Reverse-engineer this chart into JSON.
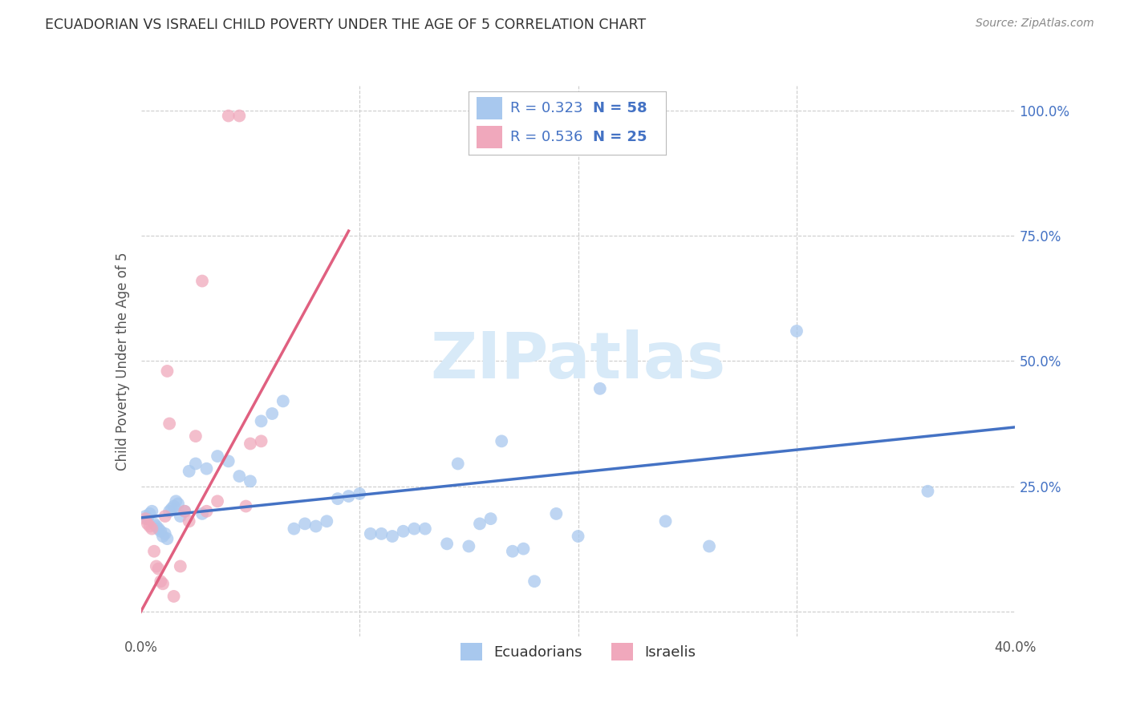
{
  "title": "ECUADORIAN VS ISRAELI CHILD POVERTY UNDER THE AGE OF 5 CORRELATION CHART",
  "source": "Source: ZipAtlas.com",
  "ylabel": "Child Poverty Under the Age of 5",
  "xlim": [
    0.0,
    0.4
  ],
  "ylim": [
    -0.05,
    1.05
  ],
  "legend_r_blue": "R = 0.323",
  "legend_n_blue": "N = 58",
  "legend_r_pink": "R = 0.536",
  "legend_n_pink": "N = 25",
  "color_blue": "#A8C8EE",
  "color_pink": "#F0A8BC",
  "color_blue_line": "#4472C4",
  "color_pink_line": "#E06080",
  "watermark_color": "#D8EAF8",
  "background_color": "#FFFFFF",
  "grid_color": "#CCCCCC",
  "ecu_x": [
    0.002,
    0.003,
    0.004,
    0.005,
    0.006,
    0.007,
    0.008,
    0.009,
    0.01,
    0.011,
    0.012,
    0.013,
    0.014,
    0.015,
    0.016,
    0.017,
    0.018,
    0.02,
    0.022,
    0.025,
    0.028,
    0.03,
    0.035,
    0.04,
    0.045,
    0.05,
    0.055,
    0.06,
    0.065,
    0.07,
    0.075,
    0.08,
    0.085,
    0.09,
    0.095,
    0.1,
    0.105,
    0.11,
    0.115,
    0.12,
    0.125,
    0.13,
    0.14,
    0.145,
    0.15,
    0.155,
    0.16,
    0.165,
    0.17,
    0.175,
    0.18,
    0.19,
    0.2,
    0.21,
    0.24,
    0.26,
    0.3,
    0.36
  ],
  "ecu_y": [
    0.19,
    0.185,
    0.195,
    0.2,
    0.175,
    0.17,
    0.165,
    0.16,
    0.15,
    0.155,
    0.145,
    0.2,
    0.205,
    0.21,
    0.22,
    0.215,
    0.19,
    0.2,
    0.28,
    0.295,
    0.195,
    0.285,
    0.31,
    0.3,
    0.27,
    0.26,
    0.38,
    0.395,
    0.42,
    0.165,
    0.175,
    0.17,
    0.18,
    0.225,
    0.23,
    0.235,
    0.155,
    0.155,
    0.15,
    0.16,
    0.165,
    0.165,
    0.135,
    0.295,
    0.13,
    0.175,
    0.185,
    0.34,
    0.12,
    0.125,
    0.06,
    0.195,
    0.15,
    0.445,
    0.18,
    0.13,
    0.56,
    0.24
  ],
  "isr_x": [
    0.002,
    0.003,
    0.004,
    0.005,
    0.006,
    0.007,
    0.008,
    0.009,
    0.01,
    0.011,
    0.012,
    0.013,
    0.015,
    0.018,
    0.02,
    0.022,
    0.025,
    0.028,
    0.03,
    0.035,
    0.04,
    0.045,
    0.048,
    0.05,
    0.055
  ],
  "isr_y": [
    0.185,
    0.175,
    0.17,
    0.165,
    0.12,
    0.09,
    0.085,
    0.06,
    0.055,
    0.19,
    0.48,
    0.375,
    0.03,
    0.09,
    0.2,
    0.18,
    0.35,
    0.66,
    0.2,
    0.22,
    0.99,
    0.99,
    0.21,
    0.335,
    0.34
  ],
  "blue_line_x0": 0.0,
  "blue_line_x1": 0.4,
  "blue_line_y0": 0.187,
  "blue_line_y1": 0.368,
  "pink_line_x0": -0.005,
  "pink_line_x1": 0.095,
  "pink_line_y0": -0.04,
  "pink_line_y1": 0.76
}
